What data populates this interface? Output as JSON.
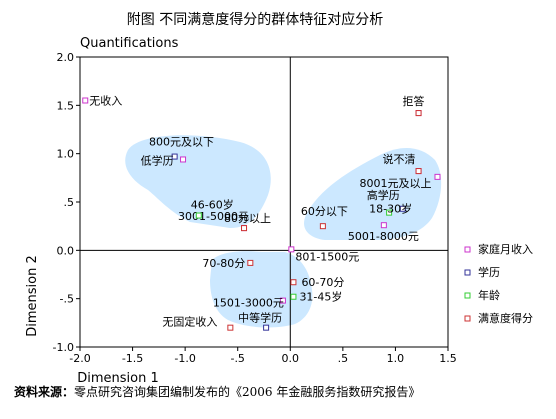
{
  "chart_data": {
    "type": "scatter",
    "title": "附图   不同满意度得分的群体特征对应分析",
    "ylabel_top": "Quantifications",
    "ylabel": "Dimension 2",
    "xlabel": "Dimension 1",
    "xlim": [
      -2.0,
      1.5
    ],
    "ylim": [
      -1.0,
      2.0
    ],
    "x_ticks": [
      "-2.0",
      "-1.5",
      "-1.0",
      "-.5",
      "0.0",
      ".5",
      "1.0",
      "1.5"
    ],
    "y_ticks": [
      "2.0",
      "1.5",
      "1.0",
      ".5",
      "0.0",
      "-.5",
      "-1.0"
    ],
    "legend_position": "right",
    "series": [
      {
        "name": "家庭月收入",
        "color": "#cc33cc",
        "points": [
          {
            "label": "无收入",
            "x": -1.95,
            "y": 1.55
          },
          {
            "label": "800元及以下",
            "x": -1.02,
            "y": 0.94
          },
          {
            "label": "801-1500元",
            "x": 0.01,
            "y": 0.01
          },
          {
            "label": "1501-3000元",
            "x": -0.07,
            "y": -0.52
          },
          {
            "label": "3001-5000元",
            "x": -0.44,
            "y": 0.23
          },
          {
            "label": "5001-8000元",
            "x": 0.89,
            "y": 0.26
          },
          {
            "label": "8001元及以上",
            "x": 1.4,
            "y": 0.76
          },
          {
            "label": "",
            "x": 1.22,
            "y": 0.82
          },
          {
            "label": "",
            "x": 1.22,
            "y": 1.42
          }
        ]
      },
      {
        "name": "学历",
        "color": "#333399",
        "points": [
          {
            "label": "低学历",
            "x": -1.1,
            "y": 0.97
          },
          {
            "label": "中等学历",
            "x": -0.23,
            "y": -0.8
          },
          {
            "label": "高学历",
            "x": 1.07,
            "y": 0.43
          }
        ]
      },
      {
        "name": "年龄",
        "color": "#33cc33",
        "points": [
          {
            "label": "46-60岁",
            "x": -0.87,
            "y": 0.36
          },
          {
            "label": "31-45岁",
            "x": 0.03,
            "y": -0.48
          },
          {
            "label": "18-30岁",
            "x": 0.94,
            "y": 0.39
          }
        ]
      },
      {
        "name": "满意度得分",
        "color": "#cc3333",
        "points": [
          {
            "label": "无固定收入",
            "x": -0.57,
            "y": -0.8
          },
          {
            "label": "70-80分",
            "x": -0.38,
            "y": -0.13
          },
          {
            "label": "60-70分",
            "x": 0.03,
            "y": -0.33
          },
          {
            "label": "80分以上",
            "x": -0.44,
            "y": 0.23
          },
          {
            "label": "60分以下",
            "x": 0.31,
            "y": 0.25
          },
          {
            "label": "说不清",
            "x": 1.22,
            "y": 0.82
          },
          {
            "label": "拒答",
            "x": 1.22,
            "y": 1.42
          }
        ]
      }
    ],
    "clusters_color": "#cce8ff",
    "source_label": "资料来源：",
    "source_text": "零点研究咨询集团编制发布的《2006 年金融服务指数研究报告》"
  }
}
